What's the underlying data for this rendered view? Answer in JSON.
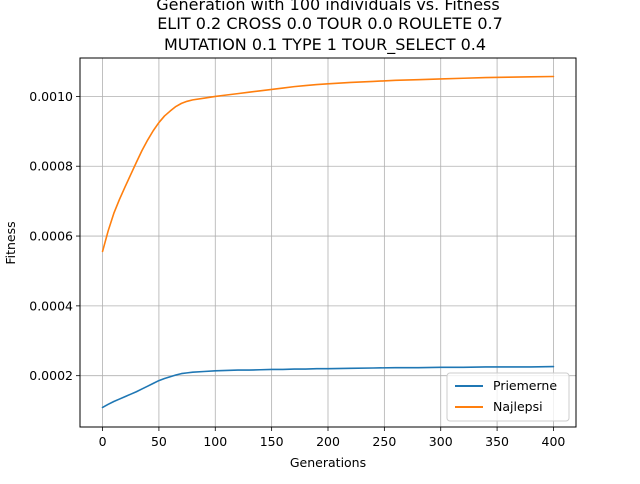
{
  "chart_data": {
    "type": "line",
    "title_lines": [
      "Generation with 100 individuals vs. Fitness",
      "ELIT 0.2 CROSS 0.0 TOUR 0.0 ROULETE 0.7",
      "MUTATION 0.1 TYPE 1 TOUR_SELECT 0.4"
    ],
    "xlabel": "Generations",
    "ylabel": "Fitness",
    "xlim": [
      -20,
      420
    ],
    "ylim": [
      5.3e-05,
      0.00111
    ],
    "x_ticks": [
      0,
      50,
      100,
      150,
      200,
      250,
      300,
      350,
      400
    ],
    "x_tick_labels": [
      "0",
      "50",
      "100",
      "150",
      "200",
      "250",
      "300",
      "350",
      "400"
    ],
    "y_ticks": [
      0.0002,
      0.0004,
      0.0006,
      0.0008,
      0.001
    ],
    "y_tick_labels": [
      "0.0002",
      "0.0004",
      "0.0006",
      "0.0008",
      "0.0010"
    ],
    "grid": true,
    "legend_position": "lower-right",
    "x": [
      0,
      5,
      10,
      15,
      20,
      25,
      30,
      35,
      40,
      45,
      50,
      55,
      60,
      65,
      70,
      75,
      80,
      90,
      100,
      110,
      120,
      130,
      140,
      150,
      160,
      170,
      180,
      190,
      200,
      220,
      240,
      260,
      280,
      300,
      320,
      340,
      360,
      380,
      400
    ],
    "series": [
      {
        "name": "Priemerne",
        "color": "#1f77b4",
        "values": [
          0.000109,
          0.000118,
          0.000126,
          0.000133,
          0.00014,
          0.000147,
          0.000154,
          0.000162,
          0.00017,
          0.000178,
          0.000186,
          0.000192,
          0.000197,
          0.000202,
          0.000206,
          0.000208,
          0.00021,
          0.000212,
          0.000214,
          0.000215,
          0.000216,
          0.000216,
          0.000217,
          0.000218,
          0.000218,
          0.000219,
          0.000219,
          0.00022,
          0.00022,
          0.000221,
          0.000222,
          0.000223,
          0.000223,
          0.000224,
          0.000224,
          0.000225,
          0.000225,
          0.000225,
          0.000226
        ]
      },
      {
        "name": "Najlepsi",
        "color": "#ff7f0e",
        "values": [
          0.000556,
          0.000615,
          0.000665,
          0.000705,
          0.000741,
          0.000776,
          0.000811,
          0.000845,
          0.000875,
          0.000902,
          0.000925,
          0.000944,
          0.000958,
          0.000971,
          0.00098,
          0.000986,
          0.00099,
          0.000995,
          0.001,
          0.001004,
          0.001008,
          0.001012,
          0.001016,
          0.00102,
          0.001024,
          0.001028,
          0.001031,
          0.001034,
          0.001036,
          0.00104,
          0.001043,
          0.001046,
          0.001048,
          0.00105,
          0.001052,
          0.001054,
          0.001055,
          0.001056,
          0.001057
        ]
      }
    ]
  }
}
